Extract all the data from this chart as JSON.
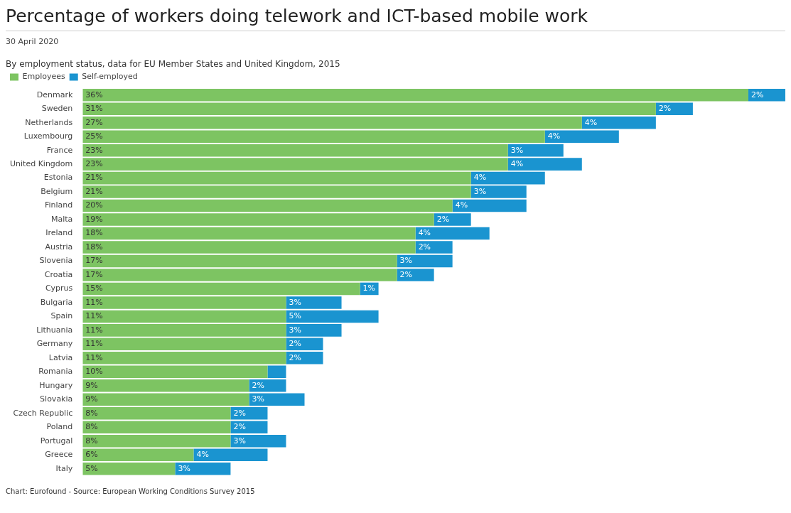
{
  "chart_data": {
    "type": "bar",
    "orientation": "horizontal",
    "stacked": true,
    "title": "Percentage of workers doing telework and ICT-based mobile work",
    "subtitle": "By employment status, data for EU Member States and United Kingdom, 2015",
    "annotations": [
      "30 April 2020",
      "Chart: Eurofound - Source: European Working Conditions Survey 2015"
    ],
    "legend": "top left",
    "categories": [
      "Denmark",
      "Sweden",
      "Netherlands",
      "Luxembourg",
      "France",
      "United Kingdom",
      "Estonia",
      "Belgium",
      "Finland",
      "Malta",
      "Ireland",
      "Austria",
      "Slovenia",
      "Croatia",
      "Cyprus",
      "Bulgaria",
      "Spain",
      "Lithuania",
      "Germany",
      "Latvia",
      "Romania",
      "Hungary",
      "Slovakia",
      "Czech Republic",
      "Poland",
      "Portugal",
      "Greece",
      "Italy"
    ],
    "series": [
      {
        "name": "Employees",
        "color": "#7dc462",
        "values": [
          36,
          31,
          27,
          25,
          23,
          23,
          21,
          21,
          20,
          19,
          18,
          18,
          17,
          17,
          15,
          11,
          11,
          11,
          11,
          11,
          10,
          9,
          9,
          8,
          8,
          8,
          6,
          5
        ],
        "value_labels": [
          "36%",
          "31%",
          "27%",
          "25%",
          "23%",
          "23%",
          "21%",
          "21%",
          "20%",
          "19%",
          "18%",
          "18%",
          "17%",
          "17%",
          "15%",
          "11%",
          "11%",
          "11%",
          "11%",
          "11%",
          "10%",
          "9%",
          "9%",
          "8%",
          "8%",
          "8%",
          "6%",
          "5%"
        ]
      },
      {
        "name": "Self-employed",
        "color": "#1a94d0",
        "values": [
          2,
          2,
          4,
          4,
          3,
          4,
          4,
          3,
          4,
          2,
          4,
          2,
          3,
          2,
          1,
          3,
          5,
          3,
          2,
          2,
          1,
          2,
          3,
          2,
          2,
          3,
          4,
          3
        ],
        "value_labels": [
          "2%",
          "2%",
          "4%",
          "4%",
          "3%",
          "4%",
          "4%",
          "3%",
          "4%",
          "2%",
          "4%",
          "2%",
          "3%",
          "2%",
          "1%",
          "3%",
          "5%",
          "3%",
          "2%",
          "2%",
          null,
          "2%",
          "3%",
          "2%",
          "2%",
          "3%",
          "4%",
          "3%"
        ]
      }
    ]
  }
}
